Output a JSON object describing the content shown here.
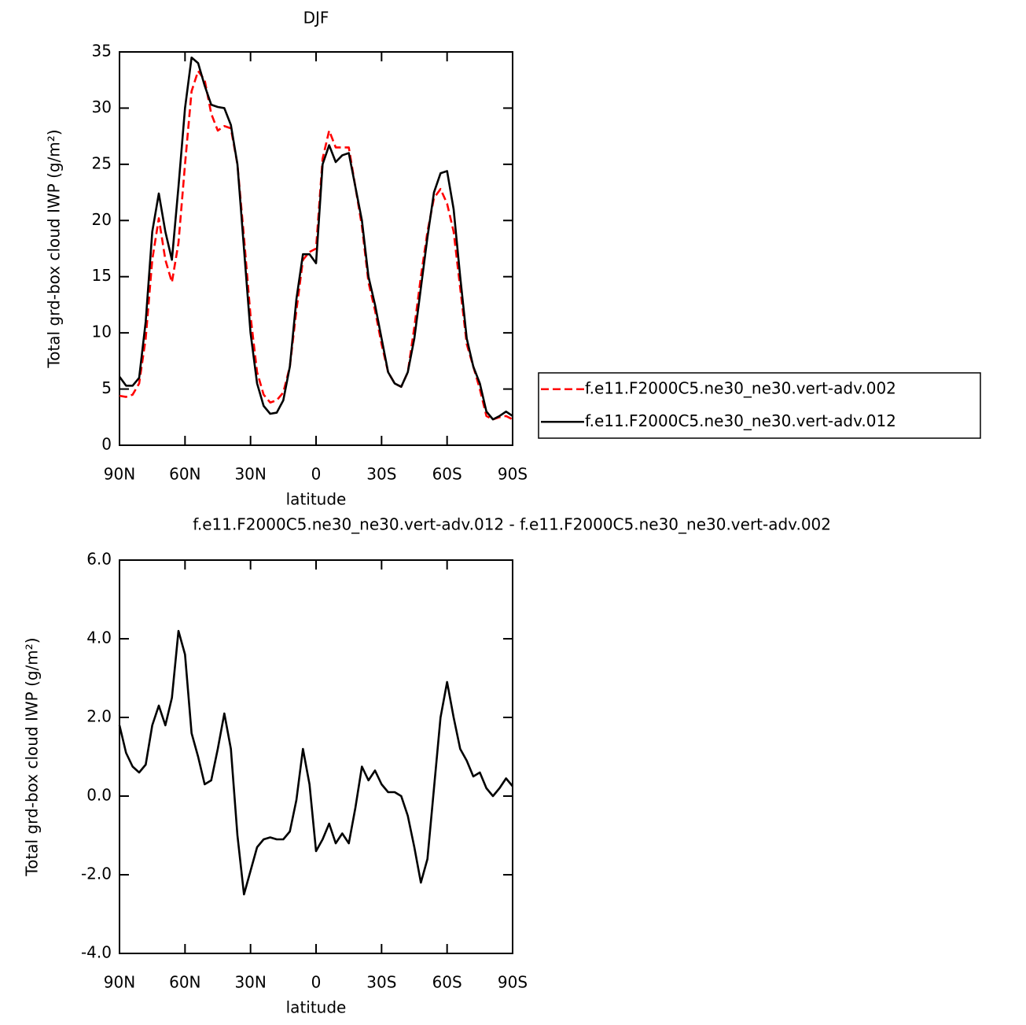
{
  "chart_data": [
    {
      "type": "line",
      "title": "DJF",
      "xlabel": "latitude",
      "ylabel": "Total grd-box cloud IWP (g/m²)",
      "x": [
        90,
        87,
        84,
        81,
        78,
        75,
        72,
        69,
        66,
        63,
        60,
        57,
        54,
        51,
        48,
        45,
        42,
        39,
        36,
        33,
        30,
        27,
        24,
        21,
        18,
        15,
        12,
        9,
        6,
        3,
        0,
        -3,
        -6,
        -9,
        -12,
        -15,
        -18,
        -21,
        -24,
        -27,
        -30,
        -33,
        -36,
        -39,
        -42,
        -45,
        -48,
        -51,
        -54,
        -57,
        -60,
        -63,
        -66,
        -69,
        -72,
        -75,
        -78,
        -81,
        -84,
        -87,
        -90
      ],
      "xlim": [
        90,
        -90
      ],
      "xticks": [
        {
          "value": 90,
          "label": "90N"
        },
        {
          "value": 60,
          "label": "60N"
        },
        {
          "value": 30,
          "label": "30N"
        },
        0,
        {
          "value": -30,
          "label": "30S"
        },
        {
          "value": -60,
          "label": "60S"
        },
        {
          "value": -90,
          "label": "90S"
        }
      ],
      "ylim": [
        0,
        35
      ],
      "yticks": [
        0,
        5,
        10,
        15,
        20,
        25,
        30,
        35
      ],
      "legend": "right",
      "series": [
        {
          "name": "f.e11.F2000C5.ne30_ne30.vert-adv.002",
          "color": "#ff0000",
          "dashed": true,
          "values": [
            4.4,
            4.3,
            4.5,
            5.5,
            9.5,
            16.5,
            20.2,
            16.5,
            14.5,
            18,
            25,
            31.5,
            33.3,
            32.5,
            29.5,
            28,
            28.4,
            28.2,
            25,
            18.5,
            11.5,
            6.5,
            4.5,
            3.8,
            4.0,
            4.7,
            7,
            12,
            16.5,
            17.2,
            17.5,
            25.5,
            28,
            26.5,
            26.5,
            26.5,
            23,
            19.5,
            14.5,
            12,
            9,
            6.5,
            5.5,
            5.2,
            6.5,
            10.5,
            15,
            19,
            22,
            22.8,
            21.5,
            19,
            14,
            9,
            7,
            5,
            2.6,
            2.3,
            2.5,
            2.6,
            2.3
          ]
        },
        {
          "name": "f.e11.F2000C5.ne30_ne30.vert-adv.012",
          "color": "#000000",
          "dashed": false,
          "values": [
            6.1,
            5.3,
            5.3,
            6.0,
            11,
            19,
            22.4,
            19,
            16.5,
            23,
            30,
            34.5,
            34,
            32,
            30.3,
            30.1,
            30,
            28.5,
            25,
            17.5,
            10,
            5.5,
            3.5,
            2.8,
            2.9,
            4,
            7,
            13,
            17,
            17,
            16.2,
            25,
            26.7,
            25.2,
            25.8,
            26,
            23,
            20,
            15,
            12.5,
            9.5,
            6.5,
            5.5,
            5.2,
            6.5,
            9.5,
            14,
            18.5,
            22.5,
            24.2,
            24.4,
            21,
            15,
            9.5,
            7,
            5.5,
            3,
            2.3,
            2.6,
            3,
            2.6
          ]
        }
      ]
    },
    {
      "type": "line",
      "title": "f.e11.F2000C5.ne30_ne30.vert-adv.012 - f.e11.F2000C5.ne30_ne30.vert-adv.002",
      "xlabel": "latitude",
      "ylabel": "Total grd-box cloud IWP (g/m²)",
      "x": [
        90,
        87,
        84,
        81,
        78,
        75,
        72,
        69,
        66,
        63,
        60,
        57,
        54,
        51,
        48,
        45,
        42,
        39,
        36,
        33,
        30,
        27,
        24,
        21,
        18,
        15,
        12,
        9,
        6,
        3,
        0,
        -3,
        -6,
        -9,
        -12,
        -15,
        -18,
        -21,
        -24,
        -27,
        -30,
        -33,
        -36,
        -39,
        -42,
        -45,
        -48,
        -51,
        -54,
        -57,
        -60,
        -63,
        -66,
        -69,
        -72,
        -75,
        -78,
        -81,
        -84,
        -87,
        -90
      ],
      "xlim": [
        90,
        -90
      ],
      "xticks": [
        {
          "value": 90,
          "label": "90N"
        },
        {
          "value": 60,
          "label": "60N"
        },
        {
          "value": 30,
          "label": "30N"
        },
        0,
        {
          "value": -30,
          "label": "30S"
        },
        {
          "value": -60,
          "label": "60S"
        },
        {
          "value": -90,
          "label": "90S"
        }
      ],
      "ylim": [
        -4,
        6
      ],
      "yticks": [
        {
          "value": -4,
          "label": "-4.0"
        },
        {
          "value": -2,
          "label": "-2.0"
        },
        {
          "value": 0,
          "label": "0.0"
        },
        {
          "value": 2,
          "label": "2.0"
        },
        {
          "value": 4,
          "label": "4.0"
        },
        {
          "value": 6,
          "label": "6.0"
        }
      ],
      "series": [
        {
          "color": "#000000",
          "dashed": false,
          "values": [
            1.8,
            1.1,
            0.75,
            0.6,
            0.8,
            1.8,
            2.3,
            1.8,
            2.5,
            4.2,
            3.6,
            1.6,
            1.0,
            0.3,
            0.4,
            1.2,
            2.1,
            1.2,
            -1.0,
            -2.5,
            -1.9,
            -1.3,
            -1.1,
            -1.05,
            -1.1,
            -1.1,
            -0.9,
            -0.1,
            1.2,
            0.3,
            -1.4,
            -1.1,
            -0.7,
            -1.2,
            -0.95,
            -1.2,
            -0.3,
            0.75,
            0.4,
            0.65,
            0.3,
            0.1,
            0.1,
            0.0,
            -0.5,
            -1.3,
            -2.2,
            -1.6,
            0.2,
            2.0,
            2.9,
            2.0,
            1.2,
            0.9,
            0.5,
            0.6,
            0.2,
            0.0,
            0.2,
            0.45,
            0.25
          ]
        }
      ]
    }
  ]
}
